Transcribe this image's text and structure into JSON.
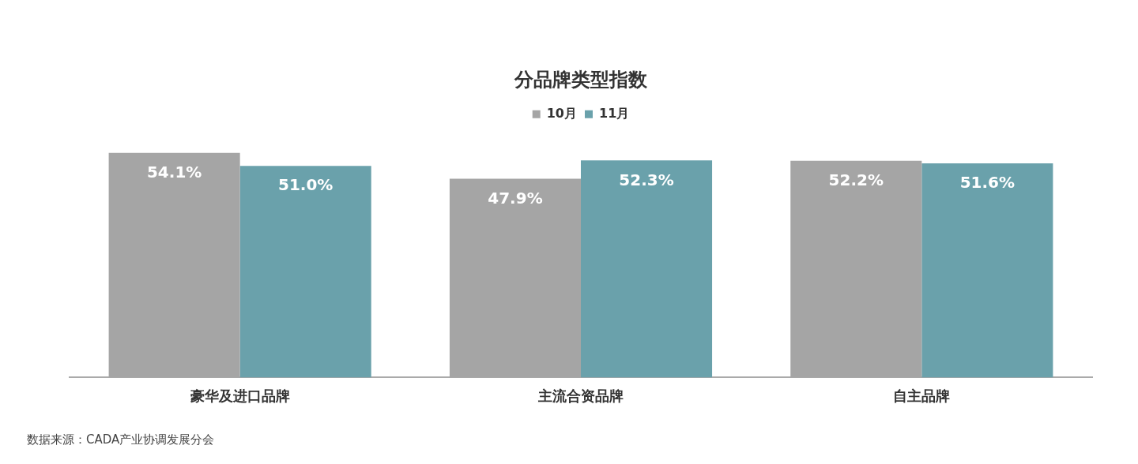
{
  "chart_data": {
    "type": "bar",
    "title": "分品牌类型指数",
    "categories": [
      "豪华及进口品牌",
      "主流合资品牌",
      "自主品牌"
    ],
    "series": [
      {
        "name": "10月",
        "color": "#a5a5a5",
        "values": [
          54.1,
          47.9,
          52.2
        ],
        "value_labels": [
          "54.1%",
          "47.9%",
          "52.2%"
        ]
      },
      {
        "name": "11月",
        "color": "#6aa1ab",
        "values": [
          51.0,
          52.3,
          51.6
        ],
        "value_labels": [
          "51.0%",
          "52.3%",
          "51.6%"
        ]
      }
    ],
    "grid": false,
    "legend": "top",
    "annotations": [
      "数据来源：CADA产业协调发展分会"
    ]
  }
}
